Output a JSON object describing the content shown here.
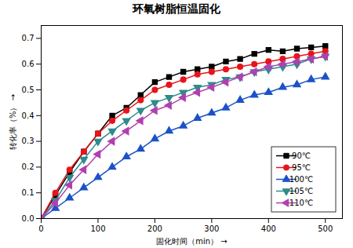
{
  "chart_data": {
    "type": "line",
    "title": "环氧树脂恒温固化",
    "x_label": "固化时间（min）",
    "y_label": "转化率（%）",
    "x": [
      0,
      25,
      50,
      75,
      100,
      125,
      150,
      175,
      200,
      225,
      250,
      275,
      300,
      325,
      350,
      375,
      400,
      425,
      450,
      475,
      500
    ],
    "series": [
      {
        "name": "90℃",
        "color": "#000000",
        "marker": "square",
        "values": [
          0,
          0.09,
          0.18,
          0.26,
          0.33,
          0.4,
          0.43,
          0.48,
          0.53,
          0.55,
          0.57,
          0.58,
          0.59,
          0.61,
          0.62,
          0.64,
          0.655,
          0.65,
          0.66,
          0.665,
          0.67
        ]
      },
      {
        "name": "95℃",
        "color": "#e8141a",
        "marker": "circle",
        "values": [
          0,
          0.1,
          0.19,
          0.26,
          0.33,
          0.38,
          0.42,
          0.46,
          0.5,
          0.52,
          0.54,
          0.56,
          0.57,
          0.58,
          0.59,
          0.6,
          0.61,
          0.62,
          0.63,
          0.64,
          0.65
        ]
      },
      {
        "name": "100℃",
        "color": "#1c52c8",
        "marker": "triangle-up",
        "values": [
          0,
          0.04,
          0.08,
          0.12,
          0.16,
          0.2,
          0.24,
          0.27,
          0.31,
          0.34,
          0.36,
          0.39,
          0.41,
          0.43,
          0.46,
          0.48,
          0.49,
          0.51,
          0.52,
          0.54,
          0.55
        ]
      },
      {
        "name": "105℃",
        "color": "#2e8b8b",
        "marker": "triangle-down",
        "values": [
          0,
          0.07,
          0.16,
          0.23,
          0.3,
          0.34,
          0.38,
          0.42,
          0.45,
          0.47,
          0.49,
          0.51,
          0.52,
          0.54,
          0.55,
          0.57,
          0.58,
          0.59,
          0.6,
          0.62,
          0.63
        ]
      },
      {
        "name": "110℃",
        "color": "#b040b0",
        "marker": "triangle-left",
        "values": [
          0,
          0.06,
          0.13,
          0.19,
          0.25,
          0.3,
          0.34,
          0.38,
          0.42,
          0.44,
          0.47,
          0.49,
          0.51,
          0.53,
          0.55,
          0.57,
          0.59,
          0.6,
          0.61,
          0.62,
          0.63
        ]
      }
    ],
    "xlim": [
      0,
      530
    ],
    "xticks": [
      0,
      100,
      200,
      300,
      400,
      500
    ],
    "ylim": [
      0,
      0.75
    ],
    "yticks": [
      {
        "value": 0,
        "label": "0.0"
      },
      0.1,
      0.2,
      0.3,
      0.4,
      0.5,
      0.6,
      0.7
    ],
    "grid": false,
    "legend": "lower right"
  }
}
